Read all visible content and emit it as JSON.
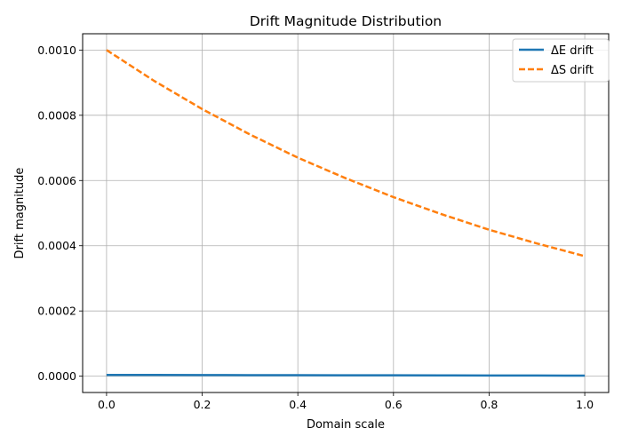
{
  "chart_data": {
    "type": "line",
    "title": "Drift Magnitude Distribution",
    "xlabel": "Domain scale",
    "ylabel": "Drift magnitude",
    "xlim": [
      -0.05,
      1.05
    ],
    "ylim": [
      -5e-05,
      0.00105
    ],
    "xticks": [
      0.0,
      0.2,
      0.4,
      0.6,
      0.8,
      1.0
    ],
    "xtick_labels": [
      "0.0",
      "0.2",
      "0.4",
      "0.6",
      "0.8",
      "1.0"
    ],
    "yticks": [
      0.0,
      0.0002,
      0.0004,
      0.0006,
      0.0008,
      0.001
    ],
    "ytick_labels": [
      "0.0000",
      "0.0002",
      "0.0004",
      "0.0006",
      "0.0008",
      "0.0010"
    ],
    "grid": true,
    "legend_position": "top-right",
    "series": [
      {
        "name": "ΔE drift",
        "color": "#1f77b4",
        "style": "solid",
        "x": [
          0.0,
          0.1,
          0.2,
          0.3,
          0.4,
          0.5,
          0.6,
          0.7,
          0.8,
          0.9,
          1.0
        ],
        "y": [
          3.7e-06,
          3.6e-06,
          3.4e-06,
          3.2e-06,
          3e-06,
          2.8e-06,
          2.6e-06,
          2.4e-06,
          2.2e-06,
          2e-06,
          1.8e-06
        ]
      },
      {
        "name": "ΔS drift",
        "color": "#ff7f0e",
        "style": "dashed",
        "x": [
          0.0,
          0.1,
          0.2,
          0.3,
          0.4,
          0.5,
          0.6,
          0.7,
          0.8,
          0.9,
          1.0
        ],
        "y": [
          0.001,
          0.000905,
          0.000819,
          0.000741,
          0.00067,
          0.000607,
          0.000549,
          0.000497,
          0.000449,
          0.000407,
          0.000368
        ]
      }
    ]
  }
}
